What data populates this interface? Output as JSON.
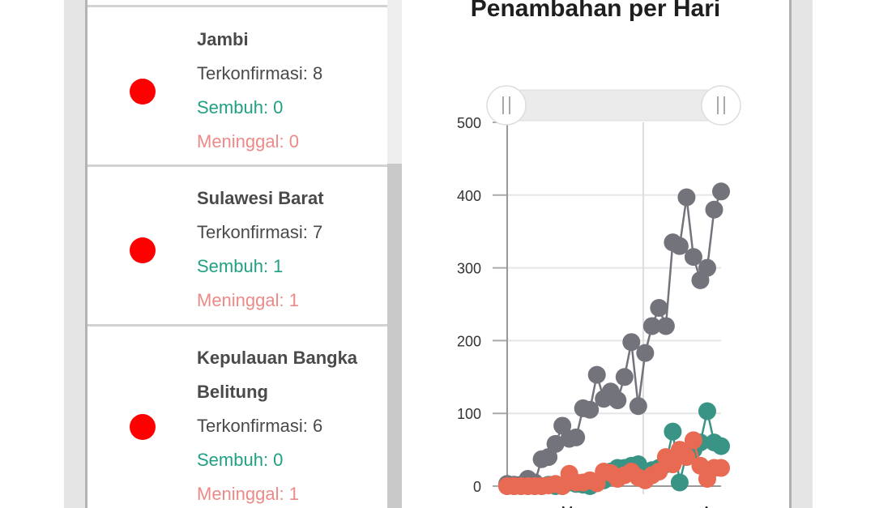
{
  "province_list": [
    {
      "name": "Jambi",
      "confirmed_label": "Terkonfirmasi: 8",
      "recovered_label": "Sembuh: 0",
      "deaths_label": "Meninggal: 0",
      "status_color": "#ff0000"
    },
    {
      "name": "Sulawesi Barat",
      "confirmed_label": "Terkonfirmasi: 7",
      "recovered_label": "Sembuh: 1",
      "deaths_label": "Meninggal: 1",
      "status_color": "#ff0000"
    },
    {
      "name_line1": "Kepulauan Bangka",
      "name_line2": "Belitung",
      "confirmed_label": "Terkonfirmasi: 6",
      "recovered_label": "Sembuh: 0",
      "deaths_label": "Meninggal: 1",
      "status_color": "#ff0000"
    }
  ],
  "chart_panel": {
    "title": "Penambahan per Hari"
  },
  "chart_data": {
    "type": "line",
    "title": "Penambahan per Hari",
    "xlabel": "",
    "ylabel": "",
    "ylim": [
      0,
      500
    ],
    "yticks": [
      0,
      100,
      200,
      300,
      400,
      500
    ],
    "xtick_labels": [
      "Mar",
      "Apr"
    ],
    "grid": true,
    "range_slider": {
      "visible": true
    },
    "series": [
      {
        "name": "grey series",
        "color": "#72737b",
        "values": [
          3,
          2,
          2,
          10,
          5,
          37,
          40,
          58,
          83,
          65,
          67,
          107,
          105,
          153,
          120,
          130,
          118,
          150,
          198,
          110,
          183,
          220,
          245,
          220,
          335,
          330,
          397,
          315,
          283,
          300,
          380,
          405
        ]
      },
      {
        "name": "teal series",
        "color": "#3a9486",
        "values": [
          0,
          0,
          0,
          0,
          0,
          0,
          2,
          0,
          0,
          5,
          3,
          2,
          0,
          4,
          8,
          20,
          25,
          25,
          28,
          30,
          18,
          22,
          25,
          30,
          75,
          5,
          45,
          50,
          60,
          103,
          60,
          55
        ]
      },
      {
        "name": "coral series",
        "color": "#e86a52",
        "values": [
          0,
          0,
          0,
          0,
          0,
          0,
          1,
          3,
          0,
          17,
          5,
          5,
          8,
          4,
          20,
          18,
          10,
          15,
          20,
          12,
          8,
          15,
          20,
          40,
          30,
          50,
          40,
          63,
          28,
          10,
          25,
          25
        ]
      }
    ]
  }
}
